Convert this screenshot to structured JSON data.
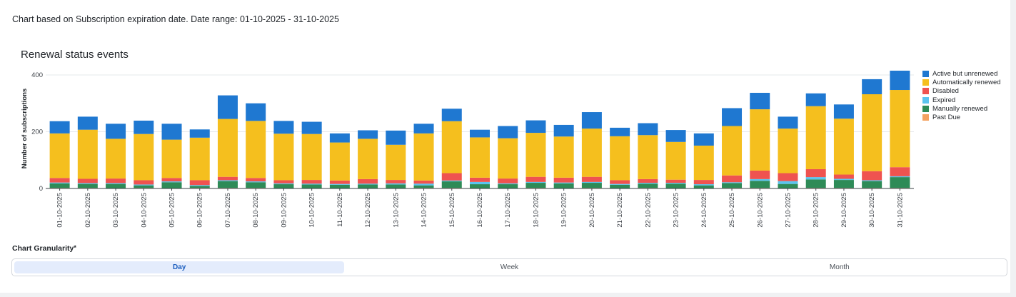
{
  "description": "Chart based on Subscription expiration date. Date range: 01-10-2025 - 31-10-2025",
  "granularity": {
    "label": "Chart Granularity",
    "required_mark": "*",
    "options": [
      "Day",
      "Week",
      "Month"
    ],
    "selected": "Day"
  },
  "chart_data": {
    "type": "bar",
    "stacked": true,
    "title": "Renewal status events",
    "xlabel": "",
    "ylabel": "Number of subscriptions",
    "ylim": [
      0,
      420
    ],
    "yticks": [
      0,
      200,
      400
    ],
    "grid": true,
    "legend_position": "right",
    "categories": [
      "01-10-2025",
      "02-10-2025",
      "03-10-2025",
      "04-10-2025",
      "05-10-2025",
      "06-10-2025",
      "07-10-2025",
      "08-10-2025",
      "09-10-2025",
      "10-10-2025",
      "11-10-2025",
      "12-10-2025",
      "13-10-2025",
      "14-10-2025",
      "15-10-2025",
      "16-10-2025",
      "17-10-2025",
      "18-10-2025",
      "19-10-2025",
      "20-10-2025",
      "21-10-2025",
      "22-10-2025",
      "23-10-2025",
      "24-10-2025",
      "25-10-2025",
      "26-10-2025",
      "27-10-2025",
      "28-10-2025",
      "29-10-2025",
      "30-10-2025",
      "31-10-2025"
    ],
    "series": [
      {
        "name": "Past Due",
        "color": "#f4a261",
        "values": [
          2,
          2,
          1,
          2,
          1,
          2,
          2,
          2,
          1,
          1,
          1,
          1,
          1,
          2,
          2,
          1,
          1,
          2,
          1,
          2,
          1,
          2,
          1,
          1,
          2,
          2,
          1,
          2,
          2,
          2,
          2
        ]
      },
      {
        "name": "Manually renewed",
        "color": "#2e8b57",
        "values": [
          16,
          14,
          15,
          9,
          21,
          7,
          24,
          20,
          14,
          13,
          12,
          13,
          13,
          9,
          23,
          14,
          14,
          18,
          17,
          18,
          12,
          15,
          16,
          10,
          17,
          25,
          15,
          30,
          28,
          24,
          38
        ]
      },
      {
        "name": "Expired",
        "color": "#5bc4ef",
        "values": [
          3,
          3,
          3,
          3,
          3,
          3,
          3,
          3,
          3,
          3,
          3,
          3,
          4,
          6,
          3,
          8,
          3,
          3,
          3,
          3,
          3,
          3,
          3,
          4,
          3,
          6,
          10,
          8,
          4,
          3,
          3
        ]
      },
      {
        "name": "Disabled",
        "color": "#ef5350",
        "values": [
          16,
          15,
          16,
          15,
          12,
          17,
          12,
          12,
          11,
          13,
          12,
          16,
          12,
          11,
          26,
          15,
          17,
          18,
          17,
          18,
          13,
          13,
          11,
          15,
          24,
          30,
          28,
          28,
          15,
          32,
          32
        ]
      },
      {
        "name": "Automatically renewed",
        "color": "#f5bf1e",
        "values": [
          157,
          173,
          140,
          163,
          135,
          150,
          204,
          201,
          164,
          162,
          134,
          142,
          124,
          166,
          183,
          142,
          142,
          155,
          145,
          170,
          155,
          155,
          133,
          121,
          174,
          216,
          157,
          222,
          197,
          271,
          272
        ]
      },
      {
        "name": "Active but unrenewed",
        "color": "#1f78d1",
        "values": [
          43,
          46,
          53,
          47,
          56,
          29,
          83,
          62,
          45,
          43,
          32,
          30,
          50,
          34,
          44,
          27,
          43,
          44,
          41,
          58,
          30,
          42,
          42,
          43,
          63,
          58,
          42,
          45,
          50,
          53,
          68
        ]
      }
    ]
  }
}
